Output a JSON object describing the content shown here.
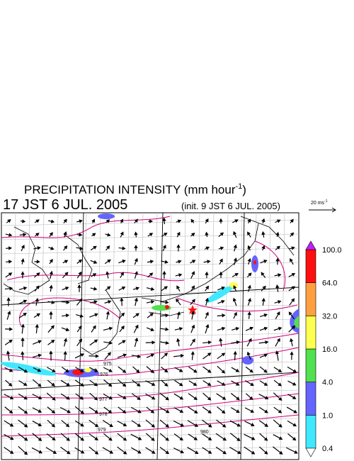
{
  "header": {
    "title_parts": [
      "PRECIPITATION INTENSITY (mm hour",
      "-1",
      ")"
    ],
    "valid_time": "17 JST 6 JUL. 2005",
    "init_time": "(init. 9 JST 6 JUL. 2005)",
    "wind_scale": {
      "label": "20 ms",
      "exponent": "-1"
    }
  },
  "colorbar": {
    "levels": [
      0.4,
      {
        "value": 1,
        "label": "1.0"
      },
      {
        "value": 4,
        "label": "4.0"
      },
      {
        "value": 16,
        "label": "16.0"
      },
      {
        "value": 32,
        "label": "32.0"
      },
      {
        "value": 64,
        "label": "64.0"
      },
      {
        "value": 100,
        "label": "100.0"
      }
    ],
    "colors": [
      "#40e8ff",
      "#6464ff",
      "#50e050",
      "#ffff50",
      "#ffa040",
      "#ff1010"
    ],
    "over_color": "#c020ff",
    "under_color": "#ffffff"
  },
  "contour_labels": [
    "975",
    "976",
    "977",
    "978",
    "979",
    "980"
  ]
}
